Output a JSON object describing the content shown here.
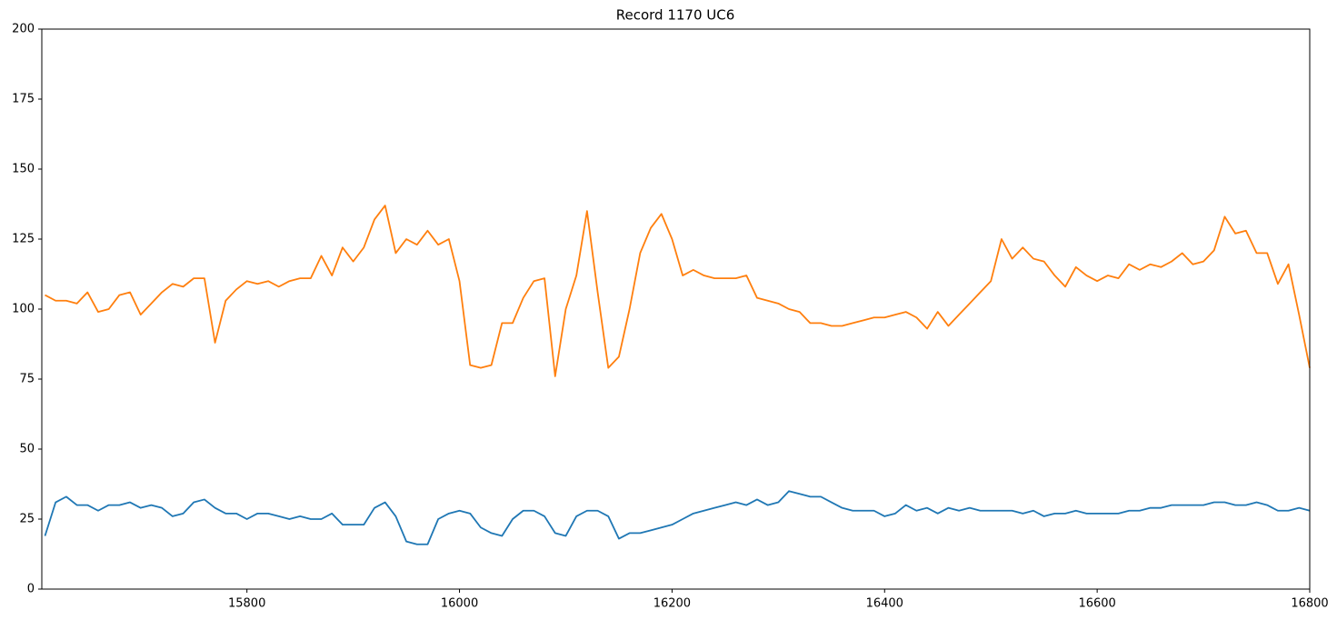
{
  "chart_data": {
    "type": "line",
    "title": "Record 1170 UC6",
    "x": [
      15610,
      15620,
      15630,
      15640,
      15650,
      15660,
      15670,
      15680,
      15690,
      15700,
      15710,
      15720,
      15730,
      15740,
      15750,
      15760,
      15770,
      15780,
      15790,
      15800,
      15810,
      15820,
      15830,
      15840,
      15850,
      15860,
      15870,
      15880,
      15890,
      15900,
      15910,
      15920,
      15930,
      15940,
      15950,
      15960,
      15970,
      15980,
      15990,
      16000,
      16010,
      16020,
      16030,
      16040,
      16050,
      16060,
      16070,
      16080,
      16090,
      16100,
      16110,
      16120,
      16130,
      16140,
      16150,
      16160,
      16170,
      16180,
      16190,
      16200,
      16210,
      16220,
      16230,
      16240,
      16250,
      16260,
      16270,
      16280,
      16290,
      16300,
      16310,
      16320,
      16330,
      16340,
      16350,
      16360,
      16370,
      16380,
      16390,
      16400,
      16410,
      16420,
      16430,
      16440,
      16450,
      16460,
      16470,
      16480,
      16490,
      16500,
      16510,
      16520,
      16530,
      16540,
      16550,
      16560,
      16570,
      16580,
      16590,
      16600,
      16610,
      16620,
      16630,
      16640,
      16650,
      16660,
      16670,
      16680,
      16690,
      16700,
      16710,
      16720,
      16730,
      16740,
      16750,
      16760,
      16770,
      16780,
      16790,
      16800
    ],
    "series": [
      {
        "color": "#1f77b4",
        "values": [
          19,
          31,
          33,
          30,
          30,
          28,
          30,
          30,
          31,
          29,
          30,
          29,
          26,
          27,
          31,
          32,
          29,
          27,
          27,
          25,
          27,
          27,
          26,
          25,
          26,
          25,
          25,
          27,
          23,
          23,
          23,
          29,
          31,
          26,
          17,
          16,
          16,
          25,
          27,
          28,
          27,
          22,
          20,
          19,
          25,
          28,
          28,
          26,
          20,
          19,
          26,
          28,
          28,
          26,
          18,
          20,
          20,
          21,
          22,
          23,
          25,
          27,
          28,
          29,
          30,
          31,
          30,
          32,
          30,
          31,
          35,
          34,
          33,
          33,
          31,
          29,
          28,
          28,
          28,
          26,
          27,
          30,
          28,
          29,
          27,
          29,
          28,
          29,
          28,
          28,
          28,
          28,
          27,
          28,
          26,
          27,
          27,
          28,
          27,
          27,
          27,
          27,
          28,
          28,
          29,
          29,
          30,
          30,
          30,
          30,
          31,
          31,
          30,
          30,
          31,
          30,
          28,
          28,
          29,
          28
        ]
      },
      {
        "color": "#ff7f0e",
        "values": [
          105,
          103,
          103,
          102,
          106,
          99,
          100,
          105,
          106,
          98,
          102,
          106,
          109,
          108,
          111,
          111,
          88,
          103,
          107,
          110,
          109,
          110,
          108,
          110,
          111,
          111,
          119,
          112,
          122,
          117,
          122,
          132,
          137,
          120,
          125,
          123,
          128,
          123,
          125,
          110,
          80,
          79,
          80,
          95,
          95,
          104,
          110,
          111,
          76,
          100,
          112,
          135,
          106,
          79,
          83,
          100,
          120,
          129,
          134,
          125,
          112,
          114,
          112,
          111,
          111,
          111,
          112,
          104,
          103,
          102,
          100,
          99,
          95,
          95,
          94,
          94,
          95,
          96,
          97,
          97,
          98,
          99,
          97,
          93,
          99,
          94,
          98,
          102,
          106,
          110,
          125,
          118,
          122,
          118,
          117,
          112,
          108,
          115,
          112,
          110,
          112,
          111,
          116,
          114,
          116,
          115,
          117,
          120,
          116,
          117,
          121,
          133,
          127,
          128,
          120,
          120,
          109,
          116,
          98,
          79
        ]
      }
    ],
    "xlim": [
      15607,
      16800
    ],
    "ylim": [
      0,
      200
    ],
    "xticks": [
      15800,
      16000,
      16200,
      16400,
      16600,
      16800
    ],
    "yticks": [
      0,
      25,
      50,
      75,
      100,
      125,
      150,
      175,
      200
    ],
    "grid": false
  }
}
